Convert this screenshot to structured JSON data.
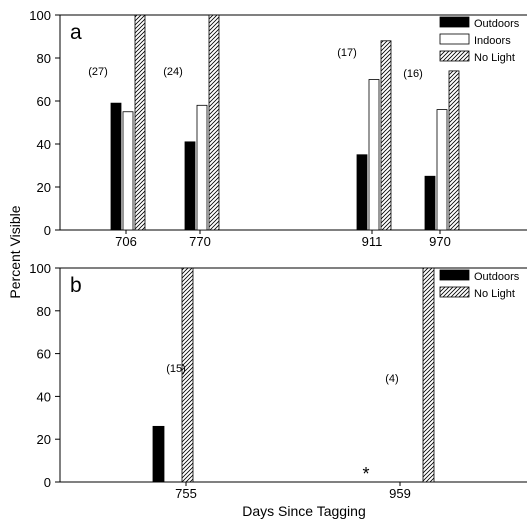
{
  "chart_data": [
    {
      "type": "bar",
      "panel_label": "a",
      "xlabel": "",
      "ylabel": "Percent Visible",
      "ylim": [
        0,
        100
      ],
      "yticks": [
        0,
        20,
        40,
        60,
        80,
        100
      ],
      "x": [
        "706",
        "770",
        "911",
        "970"
      ],
      "series": [
        {
          "name": "Outdoors",
          "values": [
            59,
            41,
            35,
            25
          ],
          "fill": "#000000"
        },
        {
          "name": "Indoors",
          "values": [
            55,
            58,
            70,
            56
          ],
          "fill": "#ffffff"
        },
        {
          "name": "No Light",
          "values": [
            100,
            100,
            88,
            74
          ],
          "fill": "hatched"
        }
      ],
      "sample_sizes": [
        "(27)",
        "(24)",
        "(17)",
        "(16)"
      ],
      "legend_position": "top-right",
      "grid": false
    },
    {
      "type": "bar",
      "panel_label": "b",
      "xlabel": "Days Since Tagging",
      "ylabel": "Percent Visible",
      "ylim": [
        0,
        100
      ],
      "yticks": [
        0,
        20,
        40,
        60,
        80,
        100
      ],
      "x": [
        "755",
        "959"
      ],
      "series": [
        {
          "name": "Outdoors",
          "values": [
            26,
            0
          ],
          "fill": "#000000"
        },
        {
          "name": "No Light",
          "values": [
            100,
            100
          ],
          "fill": "hatched"
        }
      ],
      "sample_sizes": [
        "(15)",
        "(4)"
      ],
      "annotations": [
        "*"
      ],
      "legend_position": "top-right",
      "grid": false
    }
  ]
}
